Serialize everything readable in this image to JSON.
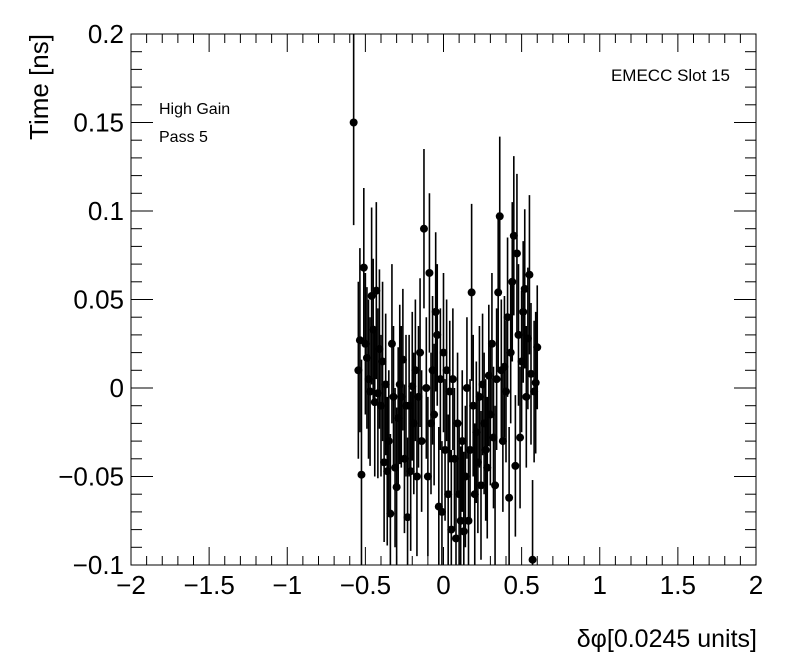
{
  "chart_data": {
    "type": "scatter",
    "error_bars": true,
    "title": "",
    "xlabel": "δφ[0.0245 units]",
    "ylabel": "Time [ns]",
    "xlim": [
      -2,
      2
    ],
    "ylim": [
      -0.1,
      0.2
    ],
    "x_tick_labels": [
      "−2",
      "−1.5",
      "−1",
      "−0.5",
      "0",
      "0.5",
      "1",
      "1.5",
      "2"
    ],
    "y_tick_labels": [
      "−0.1",
      "−0.05",
      "0",
      "0.05",
      "0.1",
      "0.15",
      "0.2"
    ],
    "annotations": {
      "top_right": "EMECC Slot 15",
      "line1": "High Gain",
      "line2": "Pass 5"
    },
    "grid": false,
    "legend": "none",
    "marker_color": "#000000",
    "points": [
      {
        "x": -0.575,
        "y": 0.15,
        "err": 0.058
      },
      {
        "x": -0.545,
        "y": 0.01,
        "err": 0.05
      },
      {
        "x": -0.535,
        "y": 0.027,
        "err": 0.052
      },
      {
        "x": -0.525,
        "y": -0.049,
        "err": 0.065
      },
      {
        "x": -0.51,
        "y": 0.068,
        "err": 0.045
      },
      {
        "x": -0.5,
        "y": 0.025,
        "err": 0.04
      },
      {
        "x": -0.49,
        "y": 0.017,
        "err": 0.04
      },
      {
        "x": -0.48,
        "y": 0.005,
        "err": 0.045
      },
      {
        "x": -0.47,
        "y": -0.002,
        "err": 0.042
      },
      {
        "x": -0.46,
        "y": 0.052,
        "err": 0.05
      },
      {
        "x": -0.45,
        "y": 0.033,
        "err": 0.04
      },
      {
        "x": -0.44,
        "y": -0.008,
        "err": 0.042
      },
      {
        "x": -0.43,
        "y": 0.055,
        "err": 0.05
      },
      {
        "x": -0.42,
        "y": -0.003,
        "err": 0.048
      },
      {
        "x": -0.41,
        "y": 0.022,
        "err": 0.045
      },
      {
        "x": -0.4,
        "y": -0.01,
        "err": 0.04
      },
      {
        "x": -0.39,
        "y": 0.015,
        "err": 0.045
      },
      {
        "x": -0.38,
        "y": -0.042,
        "err": 0.045
      },
      {
        "x": -0.37,
        "y": 0.002,
        "err": 0.04
      },
      {
        "x": -0.36,
        "y": -0.047,
        "err": 0.042
      },
      {
        "x": -0.35,
        "y": -0.03,
        "err": 0.04
      },
      {
        "x": -0.34,
        "y": -0.071,
        "err": 0.045
      },
      {
        "x": -0.33,
        "y": 0.025,
        "err": 0.045
      },
      {
        "x": -0.32,
        "y": -0.005,
        "err": 0.04
      },
      {
        "x": -0.31,
        "y": -0.045,
        "err": 0.045
      },
      {
        "x": -0.3,
        "y": -0.056,
        "err": 0.045
      },
      {
        "x": -0.29,
        "y": -0.017,
        "err": 0.04
      },
      {
        "x": -0.28,
        "y": 0.002,
        "err": 0.045
      },
      {
        "x": -0.27,
        "y": -0.005,
        "err": 0.04
      },
      {
        "x": -0.26,
        "y": 0.016,
        "err": 0.04
      },
      {
        "x": -0.25,
        "y": -0.04,
        "err": 0.042
      },
      {
        "x": -0.24,
        "y": -0.01,
        "err": 0.04
      },
      {
        "x": -0.23,
        "y": -0.073,
        "err": 0.045
      },
      {
        "x": -0.22,
        "y": -0.01,
        "err": 0.04
      },
      {
        "x": -0.21,
        "y": -0.047,
        "err": 0.045
      },
      {
        "x": -0.2,
        "y": 0.001,
        "err": 0.042
      },
      {
        "x": -0.19,
        "y": -0.02,
        "err": 0.04
      },
      {
        "x": -0.18,
        "y": 0.01,
        "err": 0.04
      },
      {
        "x": -0.17,
        "y": -0.05,
        "err": 0.045
      },
      {
        "x": -0.16,
        "y": -0.005,
        "err": 0.04
      },
      {
        "x": -0.15,
        "y": 0.02,
        "err": 0.042
      },
      {
        "x": -0.14,
        "y": -0.03,
        "err": 0.04
      },
      {
        "x": -0.125,
        "y": 0.09,
        "err": 0.045
      },
      {
        "x": -0.11,
        "y": 0.0,
        "err": 0.04
      },
      {
        "x": -0.1,
        "y": -0.05,
        "err": 0.045
      },
      {
        "x": -0.09,
        "y": 0.065,
        "err": 0.045
      },
      {
        "x": -0.08,
        "y": -0.02,
        "err": 0.04
      },
      {
        "x": -0.07,
        "y": 0.01,
        "err": 0.042
      },
      {
        "x": -0.06,
        "y": -0.015,
        "err": 0.04
      },
      {
        "x": -0.05,
        "y": 0.043,
        "err": 0.045
      },
      {
        "x": -0.04,
        "y": 0.03,
        "err": 0.04
      },
      {
        "x": -0.03,
        "y": -0.067,
        "err": 0.045
      },
      {
        "x": -0.02,
        "y": 0.005,
        "err": 0.04
      },
      {
        "x": -0.01,
        "y": -0.07,
        "err": 0.04
      },
      {
        "x": 0.0,
        "y": 0.02,
        "err": 0.045
      },
      {
        "x": 0.01,
        "y": -0.035,
        "err": 0.04
      },
      {
        "x": 0.02,
        "y": 0.01,
        "err": 0.04
      },
      {
        "x": 0.03,
        "y": -0.06,
        "err": 0.045
      },
      {
        "x": 0.04,
        "y": -0.002,
        "err": 0.04
      },
      {
        "x": 0.05,
        "y": -0.08,
        "err": 0.045
      },
      {
        "x": 0.06,
        "y": 0.005,
        "err": 0.04
      },
      {
        "x": 0.07,
        "y": -0.04,
        "err": 0.04
      },
      {
        "x": 0.08,
        "y": -0.085,
        "err": 0.045
      },
      {
        "x": 0.09,
        "y": -0.02,
        "err": 0.04
      },
      {
        "x": 0.1,
        "y": -0.06,
        "err": 0.04
      },
      {
        "x": 0.11,
        "y": -0.075,
        "err": 0.042
      },
      {
        "x": 0.12,
        "y": -0.03,
        "err": 0.04
      },
      {
        "x": 0.13,
        "y": -0.081,
        "err": 0.045
      },
      {
        "x": 0.14,
        "y": -0.05,
        "err": 0.04
      },
      {
        "x": 0.15,
        "y": 0.0,
        "err": 0.04
      },
      {
        "x": 0.16,
        "y": -0.075,
        "err": 0.042
      },
      {
        "x": 0.17,
        "y": -0.035,
        "err": 0.04
      },
      {
        "x": 0.18,
        "y": 0.054,
        "err": 0.05
      },
      {
        "x": 0.19,
        "y": -0.01,
        "err": 0.04
      },
      {
        "x": 0.2,
        "y": -0.06,
        "err": 0.04
      },
      {
        "x": 0.21,
        "y": -0.025,
        "err": 0.04
      },
      {
        "x": 0.22,
        "y": -0.042,
        "err": 0.04
      },
      {
        "x": 0.23,
        "y": -0.005,
        "err": 0.04
      },
      {
        "x": 0.24,
        "y": -0.055,
        "err": 0.042
      },
      {
        "x": 0.25,
        "y": 0.002,
        "err": 0.04
      },
      {
        "x": 0.26,
        "y": -0.02,
        "err": 0.04
      },
      {
        "x": 0.27,
        "y": -0.035,
        "err": 0.04
      },
      {
        "x": 0.28,
        "y": -0.045,
        "err": 0.04
      },
      {
        "x": 0.29,
        "y": 0.007,
        "err": 0.04
      },
      {
        "x": 0.3,
        "y": -0.015,
        "err": 0.04
      },
      {
        "x": 0.31,
        "y": 0.025,
        "err": 0.04
      },
      {
        "x": 0.32,
        "y": -0.028,
        "err": 0.04
      },
      {
        "x": 0.33,
        "y": -0.055,
        "err": 0.045
      },
      {
        "x": 0.34,
        "y": 0.005,
        "err": 0.04
      },
      {
        "x": 0.35,
        "y": 0.054,
        "err": 0.045
      },
      {
        "x": 0.36,
        "y": 0.097,
        "err": 0.045
      },
      {
        "x": 0.37,
        "y": 0.01,
        "err": 0.04
      },
      {
        "x": 0.38,
        "y": -0.03,
        "err": 0.04
      },
      {
        "x": 0.39,
        "y": 0.012,
        "err": 0.04
      },
      {
        "x": 0.4,
        "y": -0.002,
        "err": 0.04
      },
      {
        "x": 0.41,
        "y": 0.04,
        "err": 0.045
      },
      {
        "x": 0.42,
        "y": -0.062,
        "err": 0.04
      },
      {
        "x": 0.43,
        "y": 0.02,
        "err": 0.04
      },
      {
        "x": 0.44,
        "y": 0.06,
        "err": 0.045
      },
      {
        "x": 0.45,
        "y": 0.086,
        "err": 0.045
      },
      {
        "x": 0.46,
        "y": -0.044,
        "err": 0.04
      },
      {
        "x": 0.47,
        "y": 0.076,
        "err": 0.045
      },
      {
        "x": 0.48,
        "y": 0.03,
        "err": 0.04
      },
      {
        "x": 0.49,
        "y": -0.028,
        "err": 0.04
      },
      {
        "x": 0.5,
        "y": 0.015,
        "err": 0.04
      },
      {
        "x": 0.51,
        "y": 0.043,
        "err": 0.04
      },
      {
        "x": 0.52,
        "y": 0.056,
        "err": 0.045
      },
      {
        "x": 0.53,
        "y": -0.005,
        "err": 0.04
      },
      {
        "x": 0.54,
        "y": 0.028,
        "err": 0.04
      },
      {
        "x": 0.55,
        "y": 0.064,
        "err": 0.045
      },
      {
        "x": 0.56,
        "y": 0.008,
        "err": 0.04
      },
      {
        "x": 0.57,
        "y": -0.097,
        "err": 0.045
      },
      {
        "x": 0.58,
        "y": -0.002,
        "err": 0.04
      },
      {
        "x": 0.59,
        "y": 0.003,
        "err": 0.04
      },
      {
        "x": 0.6,
        "y": 0.023,
        "err": 0.035
      }
    ]
  }
}
